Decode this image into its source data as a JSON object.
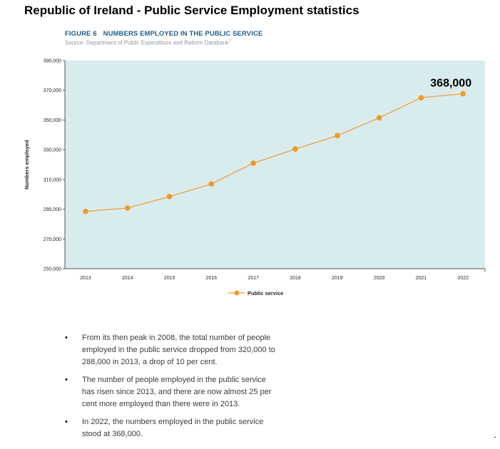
{
  "page": {
    "title": "Republic of Ireland - Public Service Employment statistics"
  },
  "figure": {
    "number": "FIGURE 6",
    "title": "NUMBERS EMPLOYED IN THE PUBLIC SERVICE",
    "source": "Source: Department of Public Expenditure and Reform Databank",
    "source_footnote": "7"
  },
  "colors": {
    "plot_bg": "#d8ecee",
    "line": "#f0a040",
    "marker": "#f09a24",
    "axis": "#555555"
  },
  "chart_data": {
    "type": "line",
    "title": "NUMBERS EMPLOYED IN THE PUBLIC SERVICE",
    "xlabel": "",
    "ylabel": "Numbers employed",
    "categories": [
      "2013",
      "2014",
      "2015",
      "2016",
      "2017",
      "2018",
      "2019",
      "2020",
      "2021",
      "2022"
    ],
    "series": [
      {
        "name": "Public service",
        "values": [
          288500,
          290800,
          298500,
          307000,
          321000,
          330500,
          339500,
          351500,
          365000,
          367700
        ]
      }
    ],
    "ylim": [
      250000,
      390000
    ],
    "yticks": [
      250000,
      270000,
      290000,
      310000,
      330000,
      350000,
      370000,
      390000
    ],
    "ytick_labels": [
      "250,000",
      "270,000",
      "290,000",
      "310,000",
      "330,000",
      "350,000",
      "370,000",
      "390,000"
    ],
    "grid": false,
    "legend": "bottom-center",
    "annotation": {
      "category": "2022",
      "text": "368,000"
    }
  },
  "bullets": [
    "From its then peak in 2008, the total number of people employed in the public service dropped from 320,000 to 288,000 in 2013, a drop of 10 per cent.",
    "The number of people employed in the public service has risen since 2013, and there are now almost 25 per cent more employed than there were in 2013.",
    "In 2022, the numbers employed in the public service stood at 368,000."
  ]
}
